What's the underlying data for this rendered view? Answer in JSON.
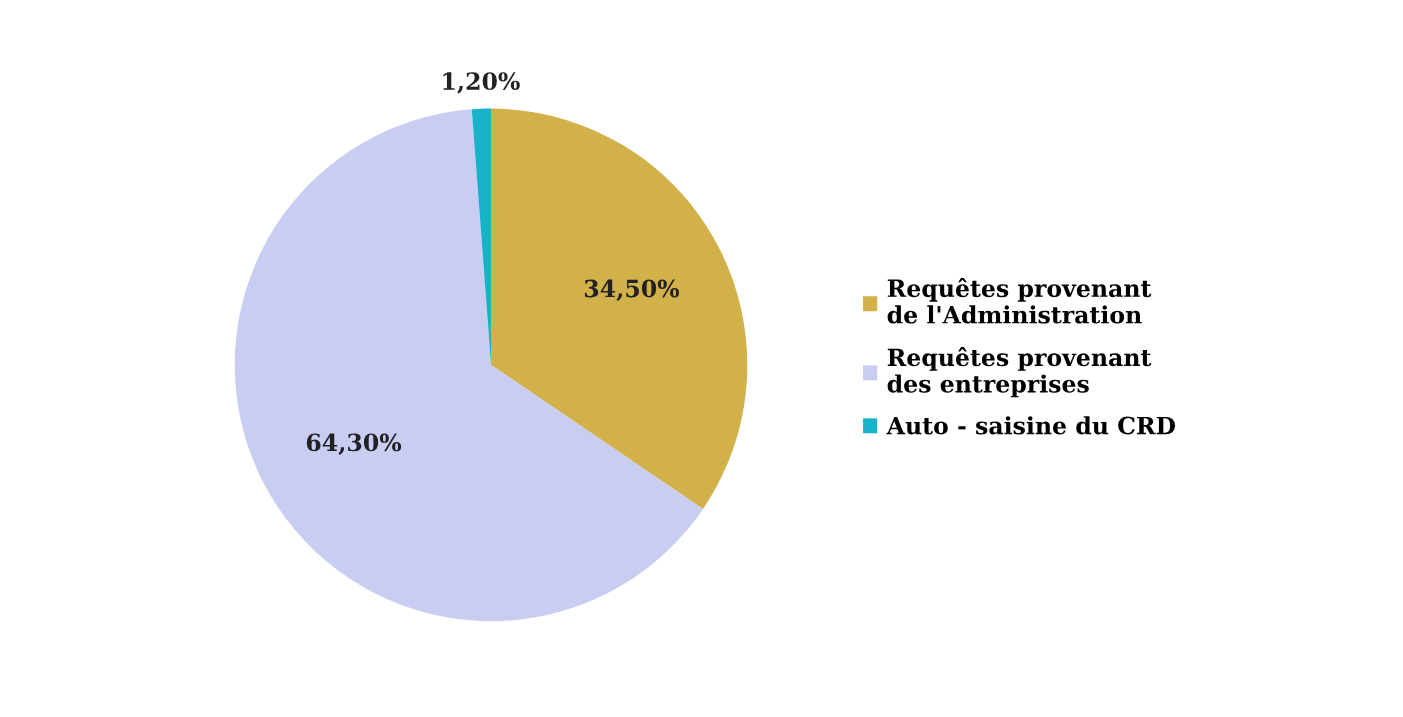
{
  "chart_data": {
    "type": "pie",
    "categories": [
      "Requêtes provenant\nde l'Administration",
      "Requêtes provenant\ndes entreprises",
      "Auto - saisine du CRD"
    ],
    "values": [
      34.5,
      64.3,
      1.2
    ],
    "colors": [
      "#d2b04a",
      "#c9cdf2",
      "#19b3c9"
    ],
    "value_labels": [
      "34,50%",
      "64,30%",
      "1,20%"
    ],
    "legend": "right"
  }
}
